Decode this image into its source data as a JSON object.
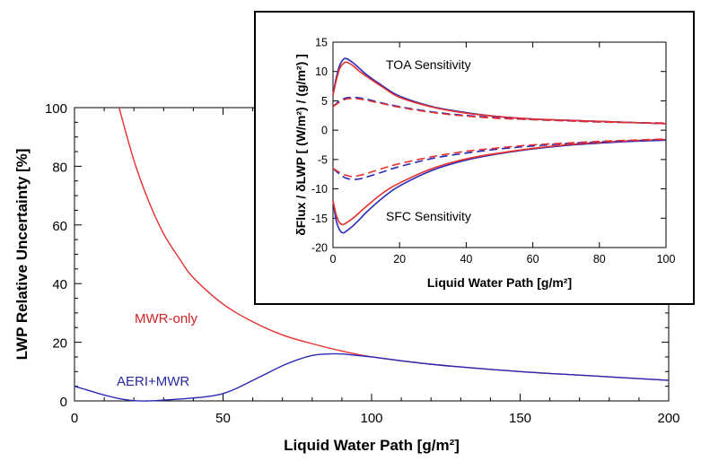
{
  "chart_data": [
    {
      "type": "line",
      "xlabel": "Liquid Water Path [g/m²]",
      "ylabel": "LWP Relative Uncertainty [%]",
      "xlim": [
        0,
        200
      ],
      "ylim": [
        0,
        100
      ],
      "xticks": [
        0,
        50,
        100,
        150,
        200
      ],
      "yticks": [
        0,
        20,
        40,
        60,
        80,
        100
      ],
      "grid": false,
      "legend": "none",
      "annotations": [
        {
          "text": "MWR-only",
          "color": "#cc2222"
        },
        {
          "text": "AERI+MWR",
          "color": "#2a2a9e"
        }
      ],
      "series": [
        {
          "name": "MWR-only",
          "color": "#e8302f",
          "x": [
            15,
            20,
            25,
            30,
            35,
            40,
            50,
            60,
            70,
            80,
            90,
            100,
            120,
            150,
            175,
            200
          ],
          "y": [
            100,
            82,
            68,
            57,
            49,
            42,
            33,
            27,
            22.5,
            19.5,
            17,
            15,
            12.5,
            10,
            8.5,
            7
          ]
        },
        {
          "name": "AERI+MWR",
          "color": "#2a2ab8",
          "x": [
            0,
            5,
            10,
            15,
            20,
            25,
            30,
            35,
            40,
            45,
            50,
            55,
            60,
            65,
            70,
            75,
            80,
            85,
            90,
            95,
            100,
            120,
            150,
            175,
            200
          ],
          "y": [
            5,
            3.5,
            2,
            0.8,
            0.1,
            0,
            0.3,
            0.6,
            1,
            1.5,
            2.5,
            4.5,
            7,
            9.5,
            12,
            14,
            15.5,
            16,
            16,
            15.5,
            15,
            12.5,
            10,
            8.5,
            7
          ]
        }
      ]
    },
    {
      "type": "line",
      "xlabel": "Liquid Water Path [g/m²]",
      "ylabel": "δFlux / δLWP [ (W/m²) / (g/m²) ]",
      "xlim": [
        0,
        100
      ],
      "ylim": [
        -20,
        15
      ],
      "xticks": [
        0,
        20,
        40,
        60,
        80,
        100
      ],
      "yticks": [
        -20,
        -15,
        -10,
        -5,
        0,
        5,
        10,
        15
      ],
      "grid": false,
      "legend": "none",
      "annotations": [
        {
          "text": "TOA Sensitivity"
        },
        {
          "text": "SFC Sensitivity"
        }
      ],
      "series": [
        {
          "color": "#2a2ab8",
          "style": "solid",
          "x": [
            0,
            1,
            2,
            3,
            4,
            6,
            8,
            10,
            15,
            20,
            30,
            40,
            50,
            60,
            70,
            80,
            90,
            100
          ],
          "y": [
            6,
            9,
            11,
            12,
            12.2,
            11.5,
            10.5,
            9.5,
            7.5,
            5.8,
            4,
            3,
            2.3,
            1.9,
            1.7,
            1.5,
            1.3,
            1.1
          ]
        },
        {
          "color": "#e8302f",
          "style": "solid",
          "x": [
            0,
            1,
            2,
            3,
            4,
            6,
            8,
            10,
            15,
            20,
            30,
            40,
            50,
            60,
            70,
            80,
            90,
            100
          ],
          "y": [
            6,
            8.5,
            10.5,
            11.3,
            11.6,
            11,
            10,
            9.2,
            7.3,
            5.6,
            3.9,
            2.9,
            2.3,
            1.9,
            1.7,
            1.5,
            1.3,
            1.1
          ]
        },
        {
          "color": "#2a2ab8",
          "style": "dashed",
          "x": [
            0,
            2,
            4,
            6,
            8,
            10,
            15,
            20,
            30,
            40,
            50,
            60,
            70,
            80,
            90,
            100
          ],
          "y": [
            4,
            5,
            5.5,
            5.6,
            5.5,
            5.3,
            4.6,
            4,
            3.1,
            2.5,
            2.1,
            1.8,
            1.6,
            1.4,
            1.3,
            1.2
          ]
        },
        {
          "color": "#e8302f",
          "style": "dashed",
          "x": [
            0,
            2,
            4,
            6,
            8,
            10,
            15,
            20,
            30,
            40,
            50,
            60,
            70,
            80,
            90,
            100
          ],
          "y": [
            4,
            4.8,
            5.3,
            5.4,
            5.3,
            5.1,
            4.5,
            3.9,
            3,
            2.4,
            2,
            1.8,
            1.6,
            1.4,
            1.3,
            1.2
          ]
        },
        {
          "color": "#2a2ab8",
          "style": "solid",
          "x": [
            0,
            1,
            2,
            3,
            4,
            6,
            8,
            10,
            15,
            20,
            30,
            40,
            50,
            60,
            70,
            80,
            90,
            100
          ],
          "y": [
            -12,
            -15.5,
            -17,
            -17.5,
            -17.2,
            -16.3,
            -15.2,
            -14,
            -11.5,
            -9.5,
            -6.8,
            -5.1,
            -4,
            -3.2,
            -2.6,
            -2.2,
            -1.9,
            -1.7
          ]
        },
        {
          "color": "#e8302f",
          "style": "solid",
          "x": [
            0,
            1,
            2,
            3,
            4,
            6,
            8,
            10,
            15,
            20,
            30,
            40,
            50,
            60,
            70,
            80,
            90,
            100
          ],
          "y": [
            -12,
            -14.5,
            -15.8,
            -16.1,
            -15.8,
            -15,
            -14,
            -13,
            -10.7,
            -9,
            -6.5,
            -4.9,
            -3.9,
            -3.1,
            -2.5,
            -2.1,
            -1.8,
            -1.6
          ]
        },
        {
          "color": "#2a2ab8",
          "style": "dashed",
          "x": [
            0,
            2,
            4,
            6,
            8,
            10,
            15,
            20,
            30,
            40,
            50,
            60,
            70,
            80,
            90,
            100
          ],
          "y": [
            -6.5,
            -7.5,
            -8.2,
            -8.4,
            -8.3,
            -8,
            -7.1,
            -6.2,
            -4.8,
            -3.9,
            -3.2,
            -2.7,
            -2.3,
            -2,
            -1.8,
            -1.6
          ]
        },
        {
          "color": "#e8302f",
          "style": "dashed",
          "x": [
            0,
            2,
            4,
            6,
            8,
            10,
            15,
            20,
            30,
            40,
            50,
            60,
            70,
            80,
            90,
            100
          ],
          "y": [
            -6.5,
            -7.2,
            -7.7,
            -7.9,
            -7.7,
            -7.4,
            -6.5,
            -5.7,
            -4.5,
            -3.6,
            -3,
            -2.5,
            -2.2,
            -1.9,
            -1.7,
            -1.5
          ]
        }
      ]
    }
  ]
}
